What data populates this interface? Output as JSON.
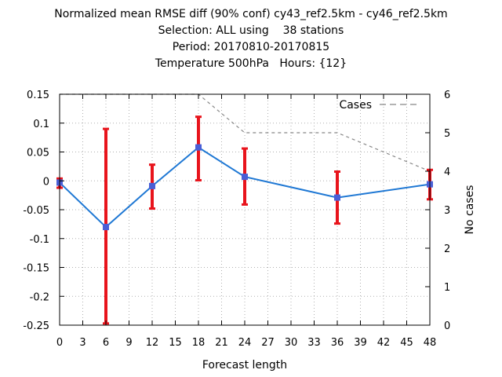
{
  "chart_data": {
    "type": "line",
    "title_lines": [
      "Normalized mean RMSE diff (90% conf) cy43_ref2.5km - cy46_ref2.5km",
      "Selection: ALL using    38 stations",
      "Period: 20170810-20170815",
      "Temperature 500hPa   Hours: {12}"
    ],
    "xlabel": "Forecast length",
    "ylabel_right": "No cases",
    "xlim": [
      0,
      48
    ],
    "ylim": [
      -0.25,
      0.15
    ],
    "y2lim": [
      0,
      6
    ],
    "x_ticks": [
      "0",
      "3",
      "6",
      "9",
      "12",
      "15",
      "18",
      "21",
      "24",
      "27",
      "30",
      "33",
      "36",
      "39",
      "42",
      "45",
      "48"
    ],
    "y_ticks": [
      "0.15",
      "0.1",
      "0.05",
      "0",
      "-0.05",
      "-0.1",
      "-0.15",
      "-0.2",
      "-0.25"
    ],
    "y2_ticks": [
      "6",
      "5",
      "4",
      "3",
      "2",
      "1",
      "0"
    ],
    "grid": true,
    "legend_position": "top-right",
    "series": [
      {
        "name": "",
        "color": "#1f78d4",
        "x": [
          0,
          6,
          12,
          18,
          24,
          36,
          48
        ],
        "values": [
          -0.003,
          -0.08,
          -0.009,
          0.058,
          0.007,
          -0.029,
          -0.006
        ],
        "err_low": [
          -0.012,
          -0.247,
          -0.048,
          0.001,
          -0.041,
          -0.074,
          -0.032
        ],
        "err_high": [
          0.004,
          0.09,
          0.028,
          0.111,
          0.056,
          0.016,
          0.019
        ],
        "errorbar_color": "#e8141c"
      },
      {
        "name": "Cases",
        "color": "#888888",
        "axis": "right",
        "x": [
          0,
          6,
          12,
          18,
          24,
          36,
          48
        ],
        "values": [
          6,
          6,
          6,
          6,
          5,
          5,
          4
        ]
      }
    ]
  }
}
